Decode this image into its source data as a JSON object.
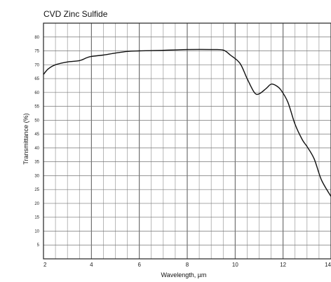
{
  "chart_data": {
    "type": "line",
    "title": "CVD Zinc Sulfide",
    "xlabel": "Wavelength, µm",
    "ylabel": "Transmittance (%)",
    "xlim": [
      2,
      14
    ],
    "ylim": [
      0,
      85
    ],
    "x_ticks": [
      2,
      4,
      6,
      8,
      10,
      12,
      14
    ],
    "y_ticks": [
      5,
      10,
      15,
      20,
      25,
      30,
      35,
      40,
      45,
      50,
      55,
      60,
      65,
      70,
      75,
      80
    ],
    "grid": true,
    "series": [
      {
        "color": "#111111",
        "x": [
          2.0,
          2.2,
          2.5,
          3.0,
          3.5,
          3.8,
          4.0,
          4.5,
          5.0,
          5.5,
          6.0,
          7.0,
          8.0,
          9.0,
          9.5,
          9.8,
          10.2,
          10.5,
          10.8,
          11.0,
          11.3,
          11.5,
          11.7,
          11.9,
          12.2,
          12.5,
          12.8,
          13.0,
          13.3,
          13.6,
          14.0
        ],
        "y": [
          66.5,
          68.5,
          70.0,
          71.0,
          71.5,
          72.5,
          73.0,
          73.5,
          74.2,
          74.8,
          75.0,
          75.2,
          75.5,
          75.5,
          75.3,
          73.5,
          70.5,
          65.0,
          60.0,
          59.5,
          61.5,
          63.0,
          62.5,
          61.0,
          56.5,
          48.5,
          43.0,
          40.5,
          36.0,
          28.5,
          22.5
        ]
      }
    ]
  }
}
